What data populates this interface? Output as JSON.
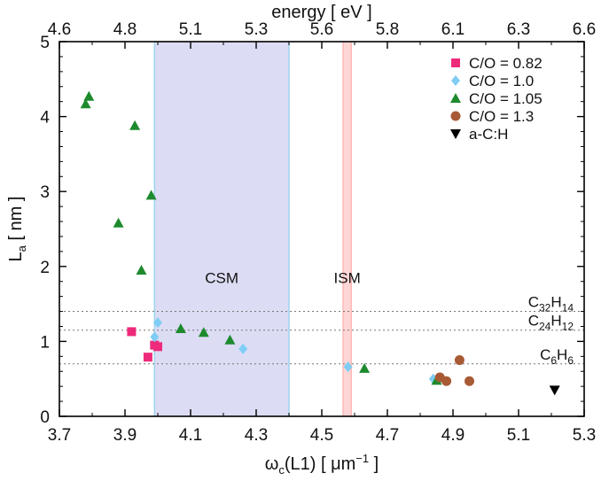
{
  "chart_data": {
    "type": "scatter",
    "xlabel": "ω",
    "xlabel_sub": "c",
    "xlabel_rest": "(L1) [ μm",
    "xlabel_sup": "−1",
    "xlabel_end": " ]",
    "ylabel": "L",
    "ylabel_sub": "a",
    "ylabel_rest": " [ nm ]",
    "top_xlabel": "energy [ eV ]",
    "xlim": [
      3.7,
      5.3
    ],
    "ylim": [
      0,
      5
    ],
    "top_xlim": [
      4.6,
      6.6
    ],
    "x_ticks": [
      "3.7",
      "3.9",
      "4.1",
      "4.3",
      "4.5",
      "4.7",
      "4.9",
      "5.1",
      "5.3"
    ],
    "y_ticks": [
      "0",
      "1",
      "2",
      "3",
      "4",
      "5"
    ],
    "top_ticks": [
      "4.6",
      "4.8",
      "5.1",
      "5.3",
      "5.6",
      "5.8",
      "6.1",
      "6.3",
      "6.6"
    ],
    "bands": [
      {
        "label": "CSM",
        "x0": 3.99,
        "x1": 4.4,
        "label_y": 1.85,
        "fill": "#dcdcf5",
        "edge": "#9fd3ea"
      },
      {
        "label": "ISM",
        "x0": 4.565,
        "x1": 4.59,
        "label_y": 1.85,
        "fill": "#ffd6d6",
        "edge": "#ffb8b8"
      }
    ],
    "hlines": [
      {
        "y": 1.4,
        "molecule": "C",
        "sub1": "32",
        "mid": "H",
        "sub2": "14"
      },
      {
        "y": 1.15,
        "molecule": "C",
        "sub1": "24",
        "mid": "H",
        "sub2": "12"
      },
      {
        "y": 0.7,
        "molecule": "C",
        "sub1": "6",
        "mid": "H",
        "sub2": "6"
      }
    ],
    "series": [
      {
        "name": "C/O = 0.82",
        "marker": "square",
        "color": "#ee2a7b",
        "points": [
          [
            3.92,
            1.13
          ],
          [
            3.97,
            0.79
          ],
          [
            3.99,
            0.95
          ],
          [
            4.0,
            0.93
          ]
        ]
      },
      {
        "name": "C/O = 1.0",
        "marker": "diamond",
        "color": "#7fcdf5",
        "points": [
          [
            3.99,
            1.06
          ],
          [
            4.0,
            1.25
          ],
          [
            4.26,
            0.9
          ],
          [
            4.58,
            0.66
          ],
          [
            4.84,
            0.5
          ],
          [
            4.86,
            0.5
          ]
        ]
      },
      {
        "name": "C/O = 1.05",
        "marker": "triangle",
        "color": "#1e8a2e",
        "points": [
          [
            3.78,
            4.17
          ],
          [
            3.79,
            4.27
          ],
          [
            3.93,
            3.88
          ],
          [
            3.98,
            2.95
          ],
          [
            3.88,
            2.58
          ],
          [
            3.95,
            1.95
          ],
          [
            4.07,
            1.17
          ],
          [
            4.14,
            1.12
          ],
          [
            4.22,
            1.02
          ],
          [
            4.63,
            0.64
          ],
          [
            4.85,
            0.48
          ]
        ]
      },
      {
        "name": "C/O = 1.3",
        "marker": "circle",
        "color": "#a85a35",
        "points": [
          [
            4.86,
            0.52
          ],
          [
            4.88,
            0.47
          ],
          [
            4.92,
            0.75
          ],
          [
            4.95,
            0.47
          ]
        ]
      },
      {
        "name": "a-C:H",
        "marker": "down-triangle",
        "color": "#000000",
        "points": [
          [
            5.21,
            0.35
          ]
        ]
      }
    ],
    "legend_position": "top-right",
    "grid": false
  }
}
